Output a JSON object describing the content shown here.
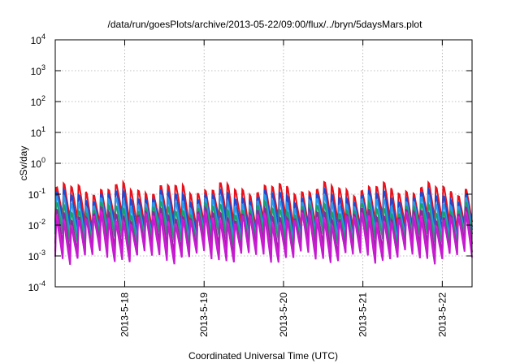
{
  "chart_data": {
    "type": "line",
    "title": "/data/run/goesPlots/archive/2013-05-22/09:00/flux/../bryn/5daysMars.plot",
    "xlabel": "Coordinated Universal Time (UTC)",
    "ylabel": "cSv/day",
    "y_scale": "log",
    "ylim": [
      0.0001,
      10000
    ],
    "y_ticks": [
      {
        "base": "10",
        "exp": "-4"
      },
      {
        "base": "10",
        "exp": "-3"
      },
      {
        "base": "10",
        "exp": "-2"
      },
      {
        "base": "10",
        "exp": "-1"
      },
      {
        "base": "10",
        "exp": "0"
      },
      {
        "base": "10",
        "exp": "1"
      },
      {
        "base": "10",
        "exp": "2"
      },
      {
        "base": "10",
        "exp": "3"
      },
      {
        "base": "10",
        "exp": "4"
      }
    ],
    "xlim": [
      "2013-05-17 03:00",
      "2013-05-22 09:00"
    ],
    "x_ticks": [
      {
        "label": "2013-5-18",
        "date": "2013-05-18 00:00"
      },
      {
        "label": "2013-5-19",
        "date": "2013-05-19 00:00"
      },
      {
        "label": "2013-5-20",
        "date": "2013-05-20 00:00"
      },
      {
        "label": "2013-5-21",
        "date": "2013-05-21 00:00"
      },
      {
        "label": "2013-5-22",
        "date": "2013-05-22 00:00"
      }
    ],
    "grid": true,
    "grid_style": "dotted",
    "legend": "none",
    "pattern": {
      "sawtooth_cycles": 56,
      "description": "sawtooth: fast rise then slow decay each cycle"
    },
    "series": [
      {
        "color": "#e8101a",
        "peak": 0.2,
        "trough": 0.012
      },
      {
        "color": "#1a4ad6",
        "peak": 0.12,
        "trough": 0.007
      },
      {
        "color": "#2a9ae8",
        "peak": 0.075,
        "trough": 0.005
      },
      {
        "color": "#1aa06a",
        "peak": 0.045,
        "trough": 0.0035
      },
      {
        "color": "#8a2a9a",
        "peak": 0.03,
        "trough": 0.0018
      },
      {
        "color": "#e21ad6",
        "peak": 0.022,
        "trough": 0.0011
      },
      {
        "color": "#c41ad0",
        "peak": 0.018,
        "trough": 0.0009
      }
    ]
  }
}
